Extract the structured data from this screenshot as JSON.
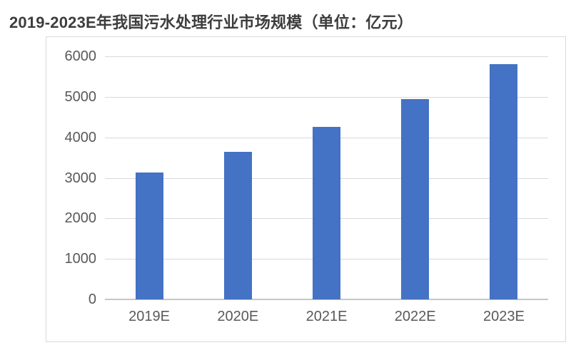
{
  "title": "2019-2023E年我国污水处理行业市场规模（单位：亿元）",
  "colors": {
    "bar": "#4472C4",
    "gridline": "#D9D9D9",
    "baseline": "#C6C6C6",
    "axis_text": "#595959",
    "title_text": "#3D3D3D",
    "frame_border": "#D9D9D9",
    "background": "#FFFFFF"
  },
  "chart_data": {
    "type": "bar",
    "title": "2019-2023E年我国污水处理行业市场规模（单位：亿元）",
    "unit": "亿元",
    "categories": [
      "2019E",
      "2020E",
      "2021E",
      "2022E",
      "2023E"
    ],
    "values": [
      3130,
      3650,
      4250,
      4950,
      5800
    ],
    "xlabel": "",
    "ylabel": "",
    "ylim": [
      0,
      6000
    ],
    "yticks": [
      0,
      1000,
      2000,
      3000,
      4000,
      5000,
      6000
    ],
    "grid": "horizontal",
    "legend": "none",
    "bar_color": "#4472C4"
  }
}
